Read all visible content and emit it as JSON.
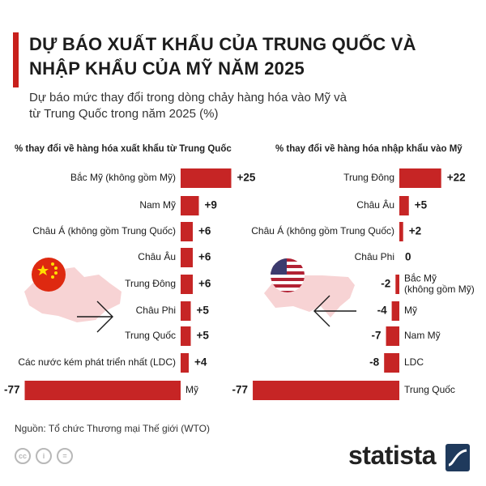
{
  "header": {
    "title_line1": "DỰ BÁO XUẤT KHẨU CỦA TRUNG QUỐC VÀ",
    "title_line2": "NHẬP KHẨU CỦA MỸ NĂM 2025",
    "subtitle_line1": "Dự báo mức thay đổi trong dòng chảy hàng hóa vào Mỹ và",
    "subtitle_line2": "từ Trung Quốc trong năm 2025 (%)"
  },
  "colors": {
    "bar": "#c62525",
    "accent": "#c8201c",
    "map": "#f7d3d4",
    "flag_red": "#de2910",
    "flag_yellow": "#ffde00",
    "flag_blue": "#3c3b6e"
  },
  "chart_data": [
    {
      "type": "bar",
      "orientation": "horizontal",
      "title": "% thay đổi về hàng hóa xuất khẩu từ Trung Quốc",
      "categories": [
        "Bắc Mỹ (không gồm Mỹ)",
        "Nam Mỹ",
        "Châu Á (không gồm Trung Quốc)",
        "Châu Âu",
        "Trung Đông",
        "Châu Phi",
        "Trung Quốc",
        "Các nước kém phát triển nhất (LDC)",
        "Mỹ"
      ],
      "values": [
        25,
        9,
        6,
        6,
        6,
        5,
        5,
        4,
        -77
      ],
      "value_labels": [
        "+25",
        "+9",
        "+6",
        "+6",
        "+6",
        "+5",
        "+5",
        "+4",
        "-77"
      ],
      "icon": "china-flag-map-icon"
    },
    {
      "type": "bar",
      "orientation": "horizontal",
      "title": "% thay đổi về hàng hóa nhập khẩu vào Mỹ",
      "categories": [
        "Trung Đông",
        "Châu Âu",
        "Châu Á (không gồm Trung Quốc)",
        "Châu Phi",
        "Bắc Mỹ (không gồm Mỹ)",
        "Mỹ",
        "Nam Mỹ",
        "LDC",
        "Trung Quốc"
      ],
      "values": [
        22,
        5,
        2,
        0,
        -2,
        -4,
        -7,
        -8,
        -77
      ],
      "value_labels": [
        "+22",
        "+5",
        "+2",
        "0",
        "-2",
        "-4",
        "-7",
        "-8",
        "-77"
      ],
      "icon": "usa-flag-map-icon"
    }
  ],
  "footer": {
    "source": "Nguồn: Tổ chức Thương mại Thế giới (WTO)",
    "brand": "statista",
    "cc_icons": [
      "cc-icon",
      "by-icon",
      "nd-icon"
    ]
  }
}
